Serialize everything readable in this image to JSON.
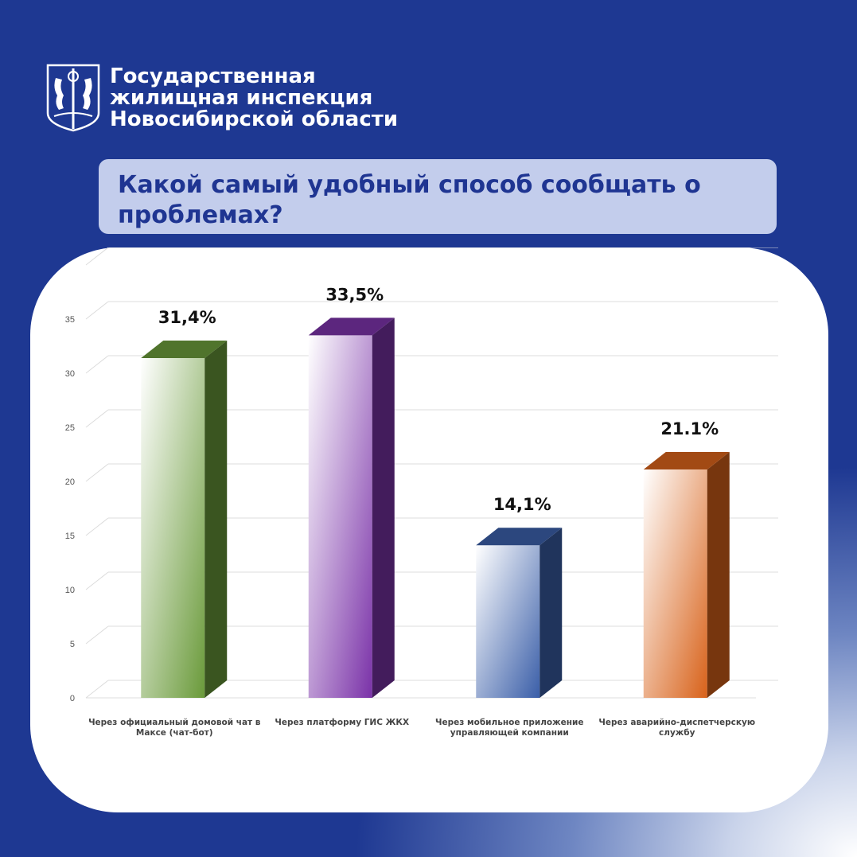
{
  "header": {
    "org_lines": [
      "Государственная",
      "жилищная инспекция",
      "Новосибирской области"
    ],
    "emblem_icon": "novosibirsk-coat-of-arms-icon"
  },
  "question": "Какой самый удобный способ сообщать о проблемах?",
  "chart_data": {
    "type": "bar",
    "categories": [
      "Через официальный домовой чат в Максе (чат-бот)",
      "Через платформу ГИС ЖКХ",
      "Через мобильное приложение управляющей компании",
      "Через аварийно-диспетчерскую службу"
    ],
    "values": [
      31.4,
      33.5,
      14.1,
      21.1
    ],
    "data_labels": [
      "31,4%",
      "33,5%",
      "14,1%",
      "21.1%"
    ],
    "ylim": [
      0,
      35
    ],
    "yticks": [
      0,
      5,
      10,
      15,
      20,
      25,
      30,
      35
    ],
    "grid": true,
    "colors": [
      "#6a9a3a",
      "#7a32a8",
      "#3a5ea8",
      "#d8621a"
    ]
  }
}
